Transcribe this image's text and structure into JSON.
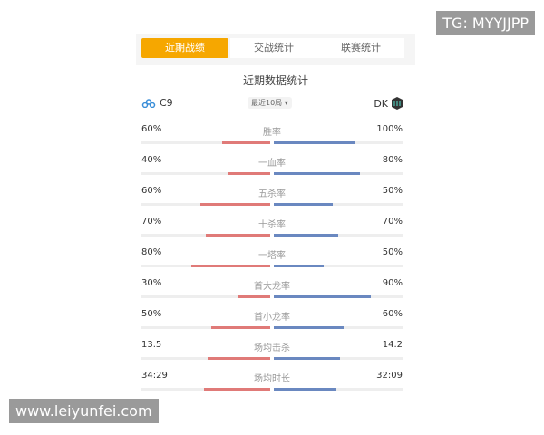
{
  "tabs": [
    {
      "label": "近期战绩",
      "active": true
    },
    {
      "label": "交战统计"
    },
    {
      "label": "联赛统计"
    }
  ],
  "section_title": "近期数据统计",
  "team_left": {
    "name": "C9",
    "icon": "cloud9-logo-icon"
  },
  "team_right": {
    "name": "DK",
    "icon": "dk-logo-icon"
  },
  "range_select": "最近10局 ▾",
  "colors": {
    "accent": "#f6a700",
    "left": "#e07a78",
    "right": "#6a88c0"
  },
  "stats": [
    {
      "label": "胜率",
      "left": "60%",
      "right": "100%"
    },
    {
      "label": "一血率",
      "left": "40%",
      "right": "80%"
    },
    {
      "label": "五杀率",
      "left": "60%",
      "right": "50%"
    },
    {
      "label": "十杀率",
      "left": "70%",
      "right": "70%"
    },
    {
      "label": "一塔率",
      "left": "80%",
      "right": "50%"
    },
    {
      "label": "首大龙率",
      "left": "30%",
      "right": "90%"
    },
    {
      "label": "首小龙率",
      "left": "50%",
      "right": "60%"
    },
    {
      "label": "场均击杀",
      "left": "13.5",
      "right": "14.2"
    },
    {
      "label": "场均时长",
      "left": "34:29",
      "right": "32:09"
    }
  ],
  "watermark_top": "TG: MYYJJPP",
  "watermark_bottom": "www.leiyunfei.com"
}
